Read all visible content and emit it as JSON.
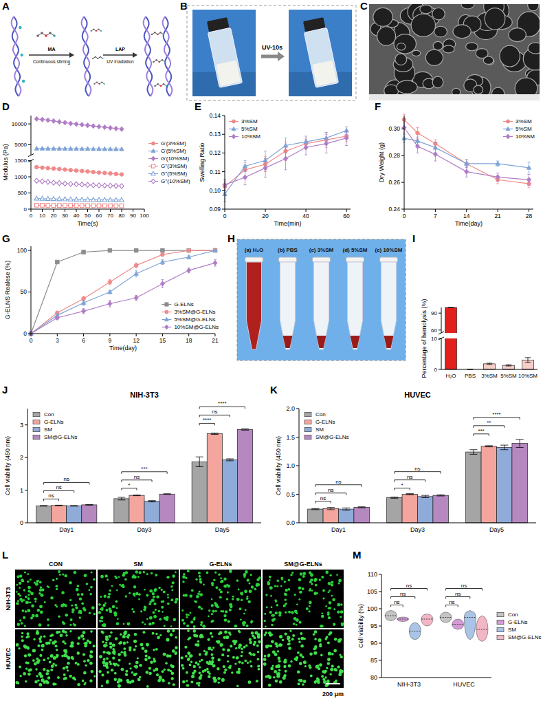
{
  "panel_letters": [
    "A",
    "B",
    "C",
    "D",
    "E",
    "F",
    "G",
    "H",
    "I",
    "J",
    "K",
    "L",
    "M"
  ],
  "schematic_A": {
    "reagent_1": "MA",
    "step_1": "Continuous stirring",
    "reagent_2": "LAP",
    "step_2": "UV irradiation"
  },
  "photo_B": {
    "label": "UV-10s"
  },
  "photo_H": {
    "tubes": [
      "(a) H₂O",
      "(b) PBS",
      "(c) 3%SM",
      "(d) 5%SM",
      "(e) 10%SM"
    ]
  },
  "images_L": {
    "columns": [
      "CON",
      "SM",
      "G-ELNs",
      "SM@G-ELNs"
    ],
    "rows": [
      "NIH-3T3",
      "HUVEC"
    ],
    "scale_bar": "200 μm"
  },
  "chart_data": [
    {
      "type": "line",
      "x_label": "Time(s)",
      "y_label": "Modulus (Pa)",
      "x": [
        5,
        10,
        15,
        20,
        25,
        30,
        35,
        40,
        45,
        50,
        55,
        60,
        65,
        70,
        75,
        80
      ],
      "xlim": [
        0,
        100
      ],
      "xticks": [
        0,
        10,
        20,
        30,
        40,
        50,
        60,
        70,
        80,
        90,
        100
      ],
      "ylim": [
        0,
        12000
      ],
      "y_break": [
        1500,
        2500
      ],
      "yticks": [
        0,
        500,
        1000,
        1500,
        5000,
        10000
      ],
      "legend": "right",
      "series": [
        {
          "name": "G'(3%SM)",
          "color": "#f08a8a",
          "marker": "circle",
          "values": [
            1300,
            1285,
            1270,
            1255,
            1240,
            1225,
            1210,
            1195,
            1180,
            1165,
            1150,
            1135,
            1120,
            1105,
            1090,
            1075
          ]
        },
        {
          "name": "G'(5%SM)",
          "color": "#7ea3d6",
          "marker": "triangle",
          "values": [
            4100,
            4090,
            4080,
            4070,
            4060,
            4050,
            4040,
            4030,
            4020,
            4010,
            4000,
            3990,
            3980,
            3970,
            3960,
            3950
          ]
        },
        {
          "name": "G'(10%SM)",
          "color": "#b07cc6",
          "marker": "diamond",
          "values": [
            11200,
            11050,
            10900,
            10700,
            10500,
            10300,
            10100,
            9950,
            9800,
            9650,
            9500,
            9350,
            9200,
            9050,
            8900,
            8750
          ]
        },
        {
          "name": "G''(3%SM)",
          "color": "#f08a8a",
          "marker": "square-open",
          "values": [
            120,
            118,
            116,
            114,
            113,
            112,
            111,
            110,
            109,
            108,
            107,
            106,
            105,
            104,
            103,
            102
          ]
        },
        {
          "name": "G''(5%SM)",
          "color": "#7ea3d6",
          "marker": "triangle-open",
          "values": [
            330,
            325,
            320,
            315,
            310,
            306,
            302,
            298,
            295,
            292,
            290,
            288,
            286,
            284,
            282,
            280
          ]
        },
        {
          "name": "G''(10%SM)",
          "color": "#b07cc6",
          "marker": "diamond-open",
          "values": [
            880,
            860,
            840,
            820,
            805,
            790,
            780,
            770,
            760,
            750,
            740,
            735,
            730,
            725,
            720,
            715
          ]
        }
      ]
    },
    {
      "type": "line",
      "x_label": "Time(min)",
      "y_label": "Swelling Ratio",
      "x": [
        0,
        10,
        20,
        30,
        40,
        50,
        60
      ],
      "xlim": [
        0,
        62
      ],
      "xticks": [
        0,
        20,
        40,
        60
      ],
      "ylim": [
        0.09,
        0.14
      ],
      "yticks": [
        0.09,
        {
          "value": 0.1,
          "label": "0.10"
        },
        0.11,
        0.12,
        0.13,
        0.14
      ],
      "legend": "upper left",
      "series": [
        {
          "name": "3%SM",
          "color": "#f08a8a",
          "marker": "circle",
          "values": [
            0.102,
            0.111,
            0.114,
            0.121,
            0.125,
            0.127,
            0.129
          ],
          "errors": [
            0.003,
            0.004,
            0.004,
            0.005,
            0.003,
            0.004,
            0.003
          ]
        },
        {
          "name": "5%SM",
          "color": "#7ea3d6",
          "marker": "triangle",
          "values": [
            0.098,
            0.113,
            0.116,
            0.124,
            0.126,
            0.128,
            0.132
          ],
          "errors": [
            0.004,
            0.003,
            0.005,
            0.004,
            0.003,
            0.003,
            0.002
          ]
        },
        {
          "name": "10%SM",
          "color": "#b07cc6",
          "marker": "diamond",
          "values": [
            0.103,
            0.107,
            0.112,
            0.117,
            0.123,
            0.125,
            0.128
          ],
          "errors": [
            0.003,
            0.004,
            0.005,
            0.006,
            0.004,
            0.005,
            0.004
          ]
        }
      ]
    },
    {
      "type": "line",
      "x_label": "Time(day)",
      "y_label": "Dry Weight (g)",
      "x": [
        0,
        3,
        7,
        14,
        21,
        28
      ],
      "xlim": [
        0,
        29
      ],
      "xticks": [
        0,
        7,
        14,
        21,
        28
      ],
      "ylim": [
        0.24,
        0.31
      ],
      "yticks": [
        0.24,
        0.26,
        0.28,
        {
          "value": 0.3,
          "label": "0.30"
        }
      ],
      "legend": "upper right",
      "series": [
        {
          "name": "3%SM",
          "color": "#f08a8a",
          "marker": "circle",
          "values": [
            0.307,
            0.297,
            0.289,
            0.274,
            0.262,
            0.259
          ],
          "errors": [
            0.004,
            0.004,
            0.003,
            0.003,
            0.003,
            0.003
          ]
        },
        {
          "name": "5%SM",
          "color": "#7ea3d6",
          "marker": "triangle",
          "values": [
            0.293,
            0.291,
            0.286,
            0.274,
            0.274,
            0.271
          ],
          "errors": [
            0.003,
            0.003,
            0.004,
            0.003,
            0.002,
            0.004
          ]
        },
        {
          "name": "10%SM",
          "color": "#b07cc6",
          "marker": "diamond",
          "values": [
            0.301,
            0.287,
            0.281,
            0.268,
            0.264,
            0.262
          ],
          "errors": [
            0.004,
            0.005,
            0.005,
            0.004,
            0.003,
            0.004
          ]
        }
      ]
    },
    {
      "type": "line",
      "x_label": "Time(day)",
      "y_label": "G-ELNS Realese (%)",
      "x": [
        0,
        3,
        6,
        9,
        12,
        15,
        18,
        21
      ],
      "xlim": [
        0,
        21
      ],
      "xticks": [
        0,
        3,
        6,
        9,
        12,
        15,
        18,
        21
      ],
      "ylim": [
        0,
        105
      ],
      "yticks": [
        0,
        50,
        100
      ],
      "legend": "lower right",
      "series": [
        {
          "name": "G-ELNs",
          "color": "#8c8c8c",
          "marker": "square",
          "values": [
            0,
            86,
            98,
            100,
            100,
            100,
            100,
            100
          ],
          "errors": [
            0,
            1,
            1,
            0,
            0,
            0,
            0,
            0
          ]
        },
        {
          "name": "3%SM@G-ELNs",
          "color": "#f08a8a",
          "marker": "circle",
          "values": [
            0,
            25,
            42,
            62,
            82,
            95,
            100,
            100
          ],
          "errors": [
            0,
            2,
            3,
            3,
            3,
            2,
            0,
            0
          ]
        },
        {
          "name": "5%SM@G-ELNs",
          "color": "#7ea3d6",
          "marker": "triangle",
          "values": [
            0,
            22,
            37,
            50,
            72,
            86,
            92,
            100
          ],
          "errors": [
            0,
            2,
            3,
            2,
            4,
            3,
            2,
            0
          ]
        },
        {
          "name": "10%SM@G-ELNs",
          "color": "#b07cc6",
          "marker": "diamond",
          "values": [
            0,
            19,
            27,
            36,
            43,
            60,
            76,
            85
          ],
          "errors": [
            0,
            2,
            3,
            4,
            3,
            5,
            3,
            4
          ]
        }
      ]
    },
    {
      "type": "bar",
      "y_label": "Percentage of hemolysis (%)",
      "categories": [
        "H₂O",
        "PBS",
        "3%SM",
        "5%SM",
        "10%SM"
      ],
      "values": [
        100,
        0,
        1.8,
        1.3,
        3
      ],
      "errors": [
        0,
        0,
        0.2,
        0.2,
        0.8
      ],
      "colors": [
        "#e3211c",
        "#f7cfc9",
        "#f7cfc9",
        "#f7cfc9",
        "#f7cfc9"
      ],
      "ylim": [
        0,
        100
      ],
      "y_break": [
        10,
        55
      ],
      "yticks": [
        0,
        10,
        60,
        90
      ]
    },
    {
      "type": "bar",
      "title": "NIH-3T3",
      "y_label": "Cell viability (450 nm)",
      "categories": [
        "Day1",
        "Day3",
        "Day5"
      ],
      "ylim": [
        0,
        3.5
      ],
      "yticks": [
        0,
        1,
        2,
        3
      ],
      "legend": "upper left",
      "series": [
        {
          "name": "Con",
          "color": "#a5a5a5",
          "values": [
            0.52,
            0.74,
            1.87
          ],
          "errors": [
            0.01,
            0.04,
            0.15
          ]
        },
        {
          "name": "G-ELNs",
          "color": "#f3a59e",
          "values": [
            0.53,
            0.84,
            2.73
          ],
          "errors": [
            0.01,
            0.01,
            0.02
          ]
        },
        {
          "name": "SM",
          "color": "#8fabd8",
          "values": [
            0.52,
            0.66,
            1.93
          ],
          "errors": [
            0.01,
            0.02,
            0.03
          ]
        },
        {
          "name": "SM@G-ELNs",
          "color": "#b589c0",
          "values": [
            0.55,
            0.88,
            2.86
          ],
          "errors": [
            0.01,
            0.01,
            0.02
          ]
        }
      ],
      "significance": [
        [
          "ns",
          "ns",
          "ns"
        ],
        [
          "*",
          "ns",
          "***"
        ],
        [
          "****",
          "ns",
          "****"
        ]
      ]
    },
    {
      "type": "bar",
      "title": "HUVEC",
      "y_label": "Cell viability (450 nm)",
      "categories": [
        "Day1",
        "Day3",
        "Day5"
      ],
      "ylim": [
        0,
        2
      ],
      "yticks": [
        {
          "value": 0,
          "label": "0.0"
        },
        0.5,
        {
          "value": 1,
          "label": "1.0"
        },
        1.5,
        {
          "value": 2,
          "label": "2.0"
        }
      ],
      "legend": "upper left",
      "series": [
        {
          "name": "Con",
          "color": "#a5a5a5",
          "values": [
            0.24,
            0.44,
            1.24
          ],
          "errors": [
            0.01,
            0.01,
            0.04
          ]
        },
        {
          "name": "G-ELNs",
          "color": "#f3a59e",
          "values": [
            0.25,
            0.5,
            1.34
          ],
          "errors": [
            0.02,
            0.01,
            0.01
          ]
        },
        {
          "name": "SM",
          "color": "#8fabd8",
          "values": [
            0.24,
            0.46,
            1.32
          ],
          "errors": [
            0.02,
            0.02,
            0.04
          ]
        },
        {
          "name": "SM@G-ELNs",
          "color": "#b589c0",
          "values": [
            0.27,
            0.48,
            1.39
          ],
          "errors": [
            0.01,
            0.01,
            0.07
          ]
        }
      ],
      "significance": [
        [
          "ns",
          "ns",
          "ns"
        ],
        [
          "*",
          "ns",
          "ns"
        ],
        [
          "***",
          "**",
          "****"
        ]
      ]
    },
    {
      "type": "violin",
      "y_label": "Cell viability (%)",
      "categories": [
        "NIH-3T3",
        "HUVEC"
      ],
      "ylim": [
        80,
        110
      ],
      "yticks": [
        80,
        85,
        90,
        95,
        100,
        105,
        110
      ],
      "legend": "right",
      "series": [
        {
          "name": "Con",
          "color": "#c4c4c4",
          "values": [
            98,
            97.5
          ],
          "min": [
            96.5,
            96
          ],
          "max": [
            99.5,
            99
          ]
        },
        {
          "name": "G-ELNs",
          "color": "#d49ad6",
          "values": [
            97,
            95.5
          ],
          "min": [
            96.3,
            94
          ],
          "max": [
            97.6,
            97
          ]
        },
        {
          "name": "SM",
          "color": "#a9c4e6",
          "values": [
            93.5,
            97.5
          ],
          "min": [
            91,
            91
          ],
          "max": [
            96,
            99.5
          ]
        },
        {
          "name": "SM@G-ELNs",
          "color": "#f3b6c6",
          "values": [
            97,
            94
          ],
          "min": [
            95,
            90.5
          ],
          "max": [
            98.5,
            98
          ]
        }
      ],
      "significance": [
        [
          "ns",
          "ns",
          "ns"
        ],
        [
          "ns",
          "ns",
          "ns"
        ]
      ]
    }
  ]
}
